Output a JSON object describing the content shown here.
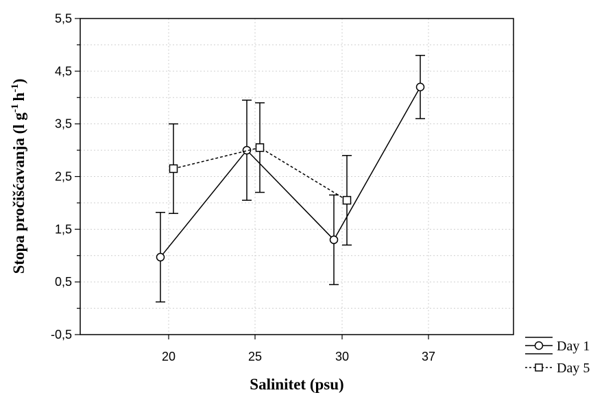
{
  "chart_data": {
    "type": "line",
    "xlabel": "Salinitet (psu)",
    "ylabel_main": "Stopa pročišćavanja (l g",
    "ylabel_sup1": "-1",
    "ylabel_mid": "h",
    "ylabel_sup2": "-1",
    "ylabel_end": ")",
    "categories": [
      "20",
      "25",
      "30",
      "37"
    ],
    "ylim": [
      -0.5,
      5.5
    ],
    "yticks": [
      "-0,5",
      "0,5",
      "1,5",
      "2,5",
      "3,5",
      "4,5",
      "5,5"
    ],
    "ytick_values": [
      -0.5,
      0.5,
      1.5,
      2.5,
      3.5,
      4.5,
      5.5
    ],
    "grid": true,
    "legend_position": "bottom-right outside",
    "series": [
      {
        "name": "Day 1",
        "marker": "circle",
        "line_style": "solid",
        "values": [
          0.97,
          3.0,
          1.3,
          4.2
        ],
        "err_low": [
          0.12,
          2.05,
          0.45,
          3.6
        ],
        "err_high": [
          1.82,
          3.95,
          2.15,
          4.8
        ]
      },
      {
        "name": "Day 5",
        "marker": "square",
        "line_style": "dashed",
        "values": [
          2.65,
          3.05,
          2.05,
          null
        ],
        "err_low": [
          1.8,
          2.2,
          1.2,
          null
        ],
        "err_high": [
          3.5,
          3.9,
          2.9,
          null
        ]
      }
    ]
  }
}
